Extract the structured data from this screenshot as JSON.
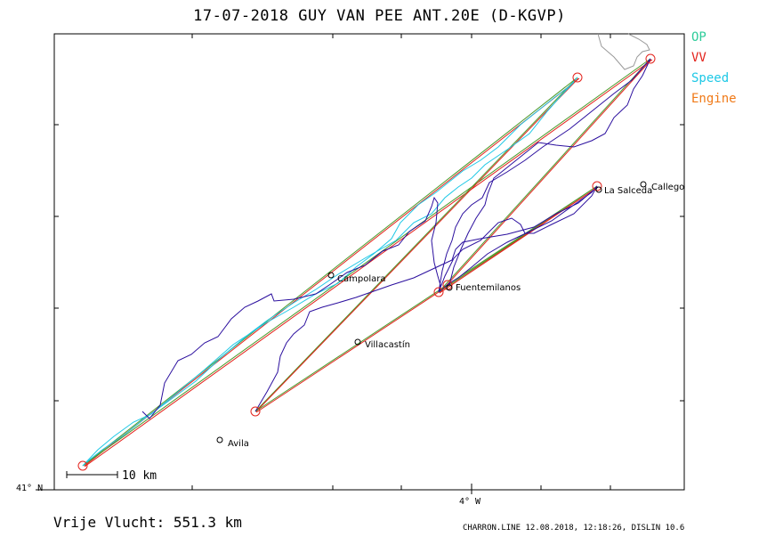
{
  "title": "17-07-2018   GUY VAN PEE   ANT.20E (D-KGVP)",
  "legend": [
    {
      "label": "OP",
      "color": "#2ecc9a"
    },
    {
      "label": "VV",
      "color": "#e3231c"
    },
    {
      "label": "Speed",
      "color": "#1ec8e6"
    },
    {
      "label": "Engine",
      "color": "#f07a18"
    }
  ],
  "towns": [
    {
      "name": "Campolara"
    },
    {
      "name": "Villacastín"
    },
    {
      "name": "Avila"
    },
    {
      "name": "Fuentemilanos"
    },
    {
      "name": "La Salceda"
    },
    {
      "name": "Callego"
    }
  ],
  "axis": {
    "lat_label": "41° N",
    "lon_label": "4° W"
  },
  "scale": {
    "label": "10 km"
  },
  "distance": "Vrije Vlucht:  551.3 km",
  "footer": "CHARRON.LINE 12.08.2018, 12:18:26, DISLIN 10.6",
  "colors": {
    "track": "#2b0f9e",
    "speed": "#1ec8e6",
    "course_green": "#4a9a2a",
    "course_red": "#e3231c",
    "frame": "#000000"
  }
}
